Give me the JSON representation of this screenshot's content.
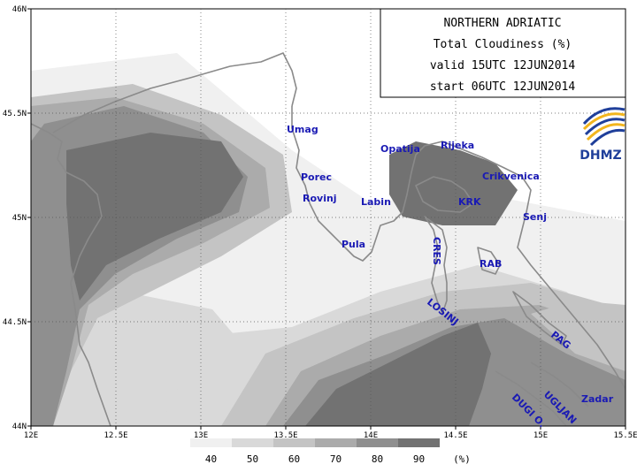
{
  "title_box": {
    "line1": "NORTHERN ADRIATIC",
    "line2": "Total Cloudiness (%)",
    "line3": "valid 15UTC 12JUN2014",
    "line4": "start 06UTC 12JUN2014"
  },
  "logo": {
    "text": "DHMZ"
  },
  "axes": {
    "x_ticks": [
      "12E",
      "12.5E",
      "13E",
      "13.5E",
      "14E",
      "14.5E",
      "15E",
      "15.5E"
    ],
    "y_ticks": [
      "46N",
      "45.5N",
      "45N",
      "44.5N",
      "44N"
    ]
  },
  "legend": {
    "labels": [
      "40",
      "50",
      "60",
      "70",
      "80",
      "90"
    ],
    "unit": "(%)"
  },
  "places": {
    "umag": "Umag",
    "porec": "Porec",
    "rovinj": "Rovinj",
    "pula": "Pula",
    "labin": "Labin",
    "opatija": "Opatija",
    "rijeka": "Rijeka",
    "crikvenica": "Crikvenica",
    "krk": "KRK",
    "senj": "Senj",
    "cres": "CRES",
    "rab": "RAB",
    "losinj": "LOSINJ",
    "pag": "PAG",
    "zadar": "Zadar",
    "ugljan": "UGLJAN",
    "dugi": "DUGI O."
  },
  "colors": {
    "c40": "#f0f0f0",
    "c50": "#d9d9d9",
    "c60": "#c4c4c4",
    "c70": "#ababab",
    "c80": "#8f8f8f",
    "c90": "#727272",
    "coast": "#8a8a8a",
    "label": "#1a1ab4"
  }
}
